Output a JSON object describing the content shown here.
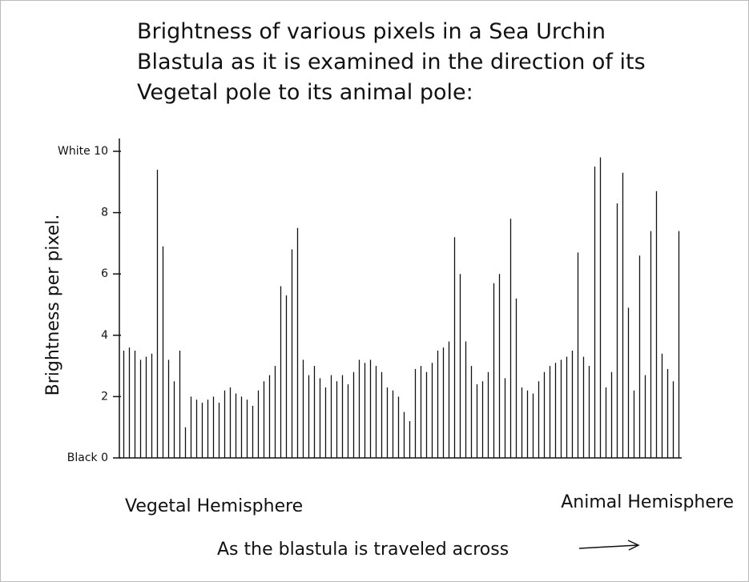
{
  "chart_data": {
    "type": "spikes",
    "title": "Brightness of various pixels in a Sea Urchin Blastula as it is examined in the direction of its Vegetal pole to its animal pole:",
    "ylabel": "Brightness per pixel.",
    "xlabel": "As the blastula is traveled across",
    "annotations": [
      "Vegetal Hemisphere",
      "Animal Hemisphere"
    ],
    "color": "#111111",
    "ylim": [
      0,
      10
    ],
    "yticks": [
      {
        "value": 0,
        "label": "Black 0"
      },
      2,
      4,
      6,
      {
        "value": 8,
        "label": "8"
      },
      {
        "value": 10,
        "label": "White 10"
      }
    ],
    "values": [
      3.5,
      3.6,
      3.5,
      3.2,
      3.3,
      3.4,
      9.4,
      6.9,
      3.2,
      2.5,
      3.5,
      1.0,
      2.0,
      1.9,
      1.8,
      1.9,
      2.0,
      1.8,
      2.2,
      2.3,
      2.1,
      2.0,
      1.9,
      1.7,
      2.2,
      2.5,
      2.7,
      3.0,
      5.6,
      5.3,
      6.8,
      7.5,
      3.2,
      2.7,
      3.0,
      2.6,
      2.3,
      2.7,
      2.5,
      2.7,
      2.4,
      2.8,
      3.2,
      3.1,
      3.2,
      3.0,
      2.8,
      2.3,
      2.2,
      2.0,
      1.5,
      1.2,
      2.9,
      3.0,
      2.8,
      3.1,
      3.5,
      3.6,
      3.8,
      7.2,
      6.0,
      3.8,
      3.0,
      2.4,
      2.5,
      2.8,
      5.7,
      6.0,
      2.6,
      7.8,
      5.2,
      2.3,
      2.2,
      2.1,
      2.5,
      2.8,
      3.0,
      3.1,
      3.2,
      3.3,
      3.5,
      6.7,
      3.3,
      3.0,
      9.5,
      9.8,
      2.3,
      2.8,
      8.3,
      9.3,
      4.9,
      2.2,
      6.6,
      2.7,
      7.4,
      8.7,
      3.4,
      2.9,
      2.5,
      7.4
    ]
  }
}
